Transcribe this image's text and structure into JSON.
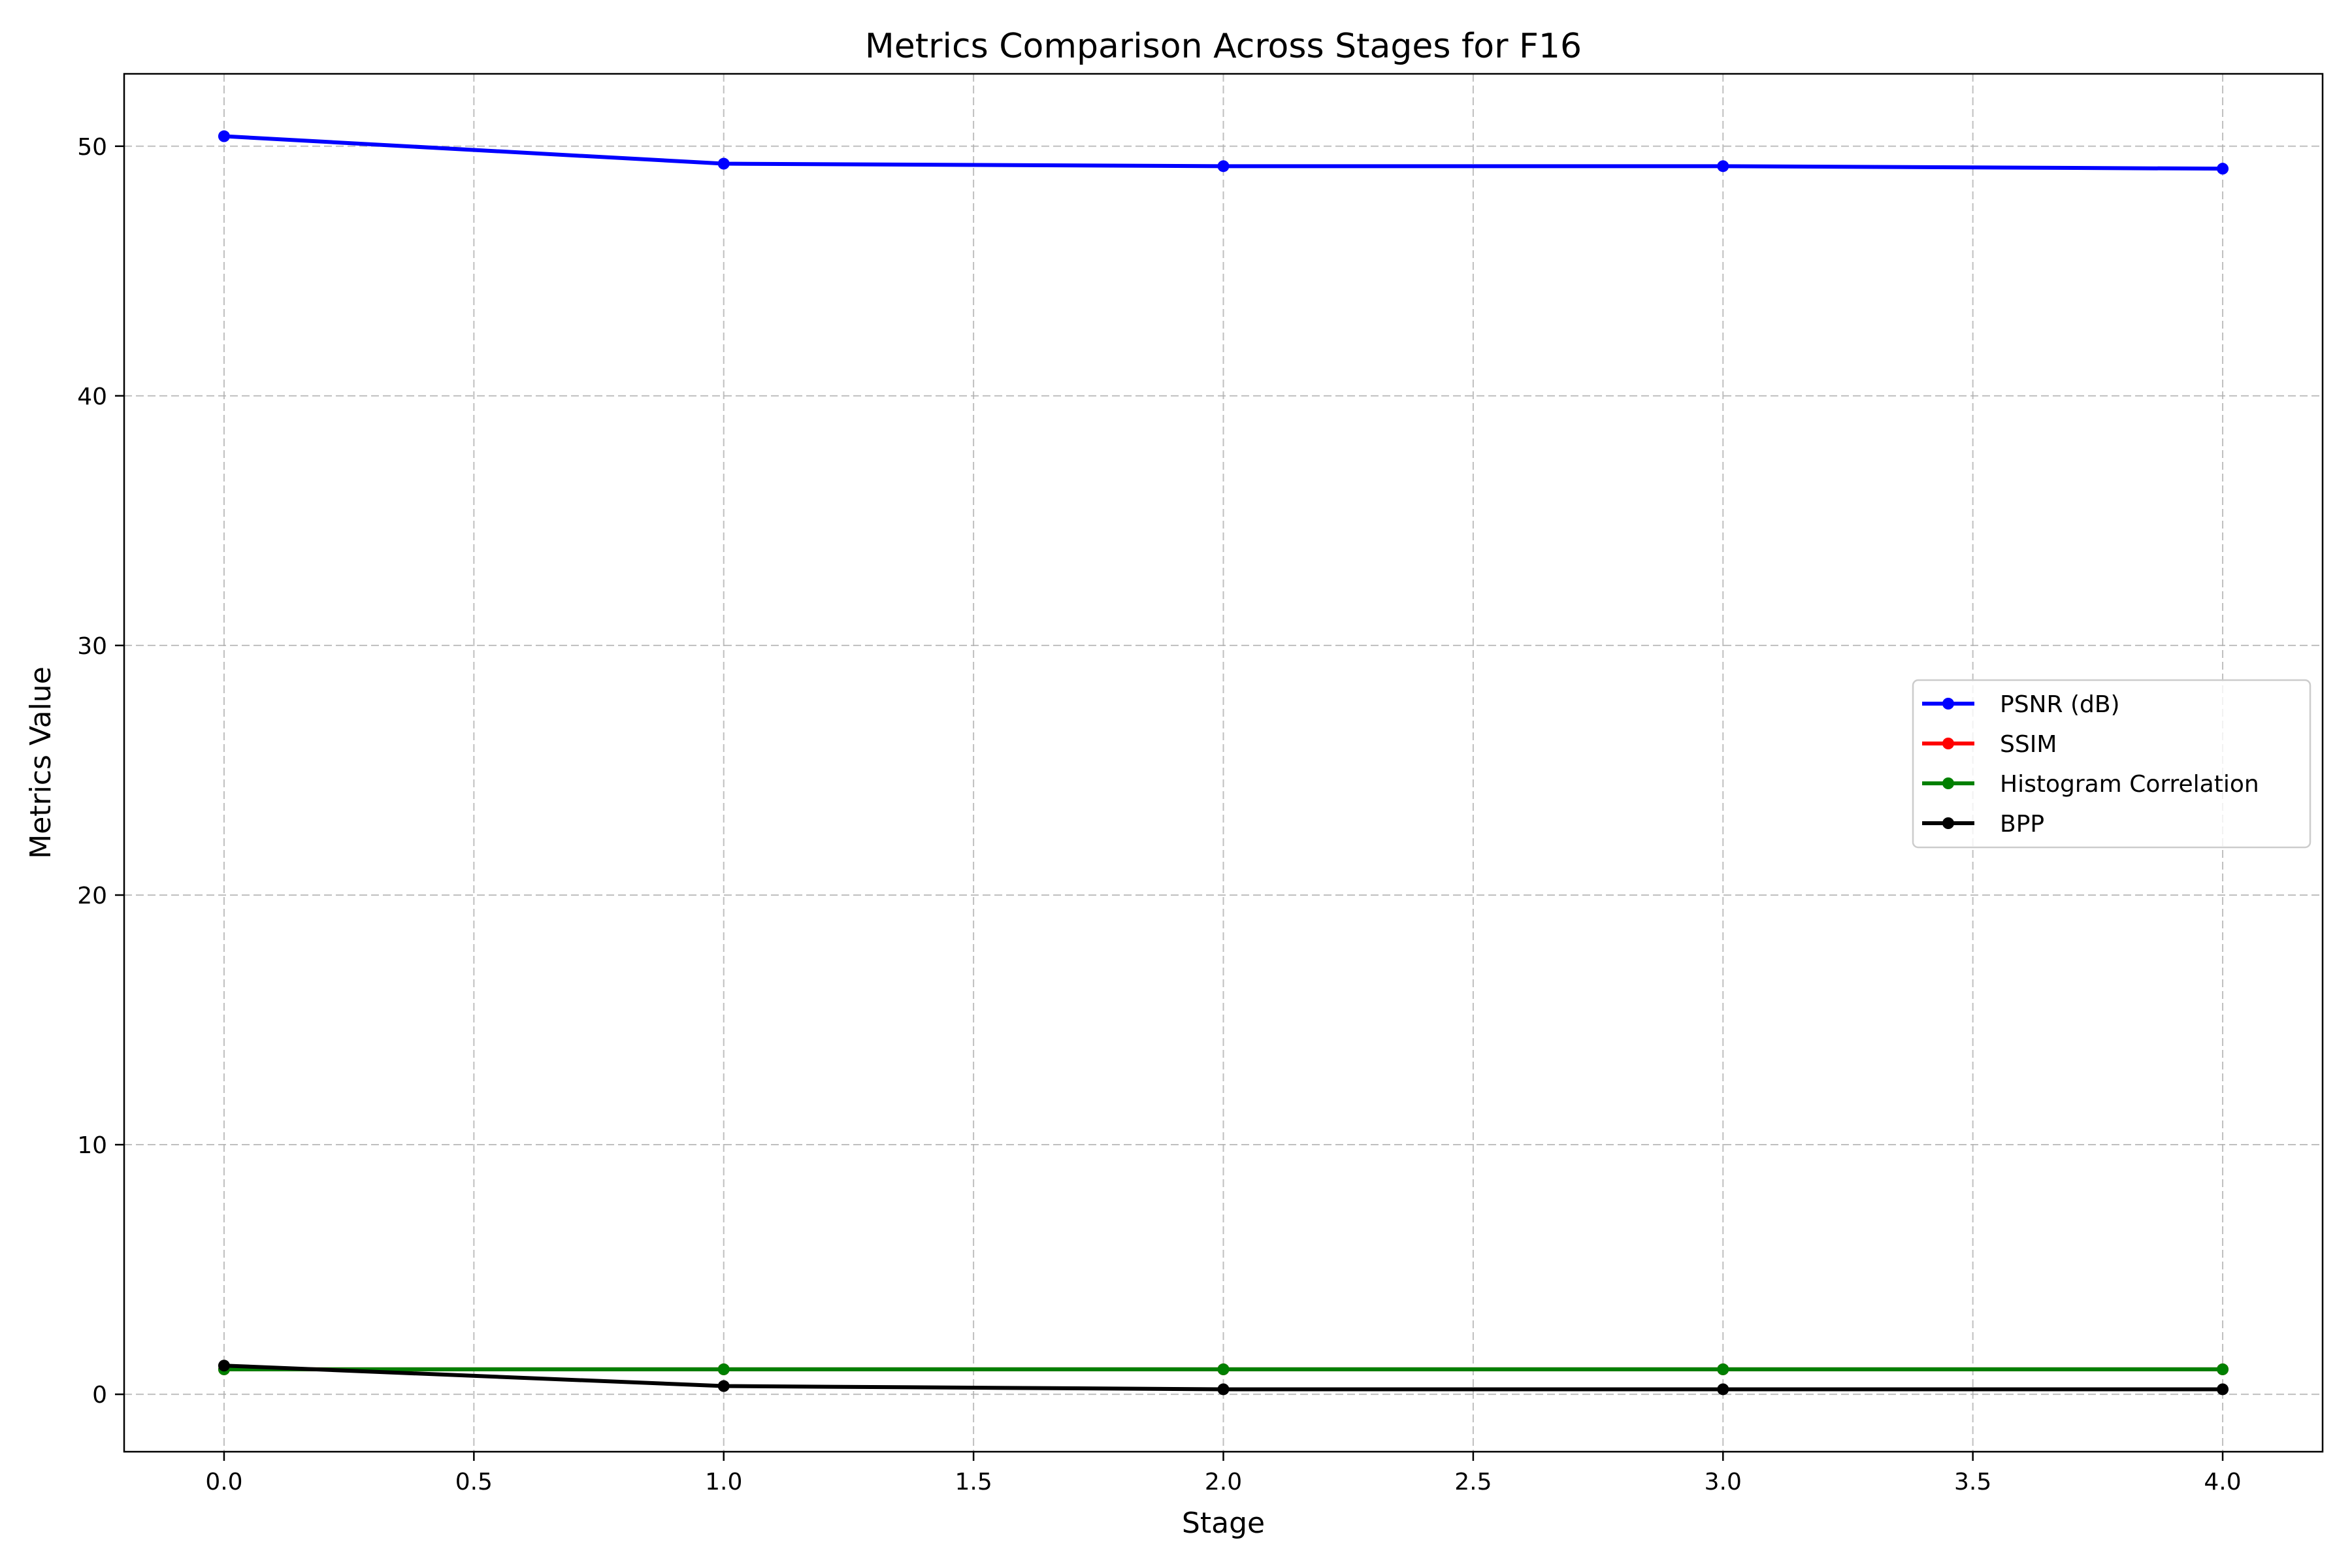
{
  "chart_data": {
    "type": "line",
    "title": "Metrics Comparison Across Stages for F16",
    "xlabel": "Stage",
    "ylabel": "Metrics Value",
    "xlim": [
      -0.2,
      4.2
    ],
    "ylim": [
      -2.3,
      52.9
    ],
    "xticks": [
      0.0,
      0.5,
      1.0,
      1.5,
      2.0,
      2.5,
      3.0,
      3.5,
      4.0
    ],
    "xtick_labels": [
      "0.0",
      "0.5",
      "1.0",
      "1.5",
      "2.0",
      "2.5",
      "3.0",
      "3.5",
      "4.0"
    ],
    "yticks": [
      0,
      10,
      20,
      30,
      40,
      50
    ],
    "ytick_labels": [
      "0",
      "10",
      "20",
      "30",
      "40",
      "50"
    ],
    "grid": true,
    "legend_position": "center-right",
    "x": [
      0,
      1,
      2,
      3,
      4
    ],
    "series": [
      {
        "name": "PSNR (dB)",
        "color": "#0000ff",
        "values": [
          50.4,
          49.3,
          49.2,
          49.2,
          49.1
        ]
      },
      {
        "name": "SSIM",
        "color": "#ff0000",
        "values": [
          1.0,
          1.0,
          1.0,
          1.0,
          1.0
        ]
      },
      {
        "name": "Histogram Correlation",
        "color": "#008000",
        "values": [
          1.0,
          1.0,
          1.0,
          1.0,
          1.0
        ]
      },
      {
        "name": "BPP",
        "color": "#000000",
        "values": [
          1.15,
          0.33,
          0.2,
          0.2,
          0.2
        ]
      }
    ]
  }
}
